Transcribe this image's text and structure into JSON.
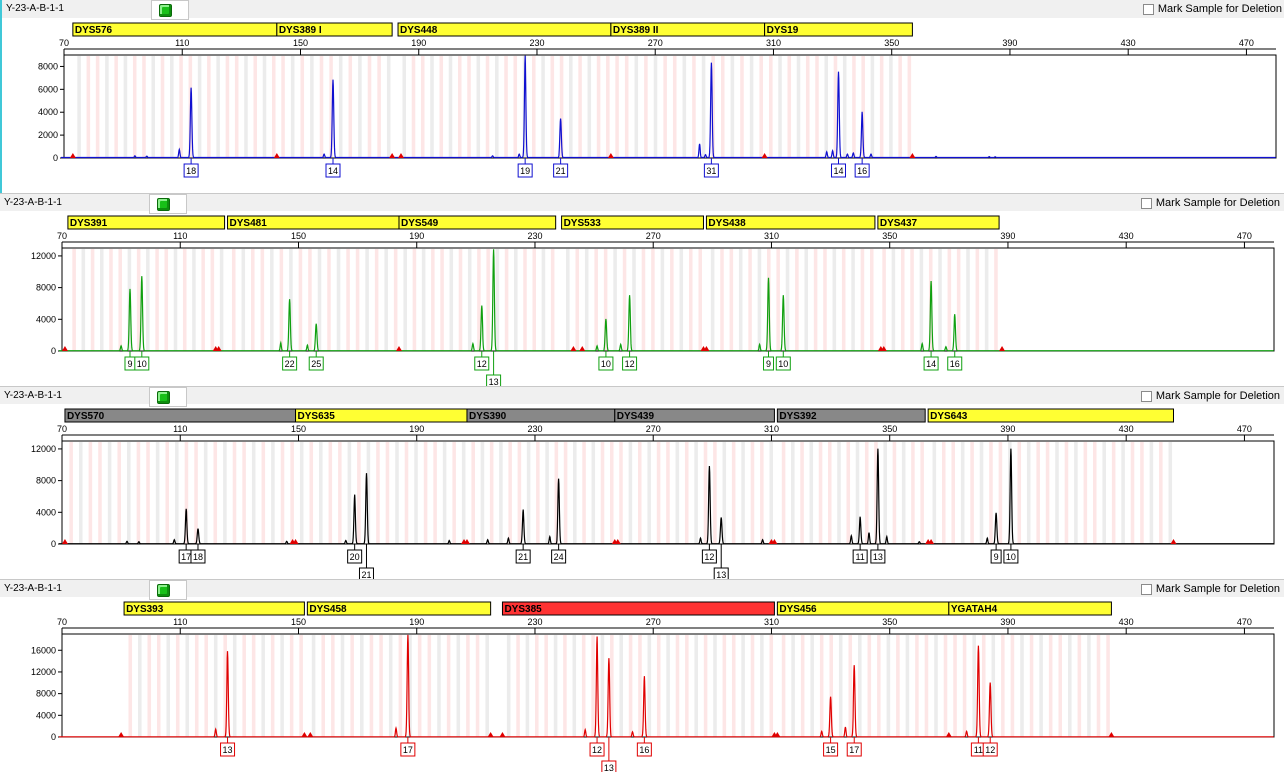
{
  "sample_name": "Y-23-A-B-1-1",
  "mark_label": "Mark Sample for Deletion",
  "x_ticks": [
    70,
    110,
    150,
    190,
    230,
    270,
    310,
    350,
    390,
    430,
    470
  ],
  "colors": {
    "bin_pink": "#fde6e6",
    "bin_gray": "#ececec",
    "marker_yellow": "#ffff33",
    "marker_gray": "#888888",
    "marker_red": "#ff3333",
    "primer_red": "#e00000"
  },
  "chart_data": [
    {
      "type": "line",
      "dye": "blue",
      "color": "#1010d0",
      "ylim": [
        0,
        9000
      ],
      "yticks": [
        0,
        2000,
        4000,
        6000,
        8000
      ],
      "xlim": [
        70,
        480
      ],
      "markers": [
        {
          "name": "DYS576",
          "start": 73,
          "end": 142,
          "color": "yellow"
        },
        {
          "name": "DYS389 I",
          "start": 142,
          "end": 181,
          "color": "yellow"
        },
        {
          "name": "DYS448",
          "start": 183,
          "end": 255,
          "color": "yellow"
        },
        {
          "name": "DYS389 II",
          "start": 255,
          "end": 307,
          "color": "yellow"
        },
        {
          "name": "DYS19",
          "start": 307,
          "end": 357,
          "color": "yellow"
        }
      ],
      "peaks": [
        {
          "x": 113,
          "h": 6100,
          "label": "18"
        },
        {
          "x": 161,
          "h": 6800,
          "label": "14"
        },
        {
          "x": 226,
          "h": 8900,
          "label": "19"
        },
        {
          "x": 238,
          "h": 3400,
          "label": "21"
        },
        {
          "x": 289,
          "h": 8300,
          "label": "31"
        },
        {
          "x": 332,
          "h": 7500,
          "label": "14"
        },
        {
          "x": 340,
          "h": 4000,
          "label": "16"
        }
      ],
      "small_peaks": [
        [
          94,
          150
        ],
        [
          98,
          120
        ],
        [
          109,
          700
        ],
        [
          158,
          300
        ],
        [
          215,
          150
        ],
        [
          224,
          300
        ],
        [
          285,
          1200
        ],
        [
          287,
          250
        ],
        [
          328,
          500
        ],
        [
          330,
          600
        ],
        [
          335,
          300
        ],
        [
          337,
          400
        ],
        [
          343,
          300
        ],
        [
          365,
          100
        ],
        [
          383,
          80
        ],
        [
          385,
          60
        ]
      ],
      "primers": [
        73,
        142,
        181,
        184,
        255,
        307,
        357
      ]
    },
    {
      "type": "line",
      "dye": "green",
      "color": "#10a010",
      "ylim": [
        0,
        13000
      ],
      "yticks": [
        0,
        4000,
        8000,
        12000
      ],
      "xlim": [
        70,
        480
      ],
      "markers": [
        {
          "name": "DYS391",
          "start": 72,
          "end": 125,
          "color": "yellow"
        },
        {
          "name": "DYS481",
          "start": 126,
          "end": 184,
          "color": "yellow"
        },
        {
          "name": "DYS549",
          "start": 184,
          "end": 237,
          "color": "yellow"
        },
        {
          "name": "DYS533",
          "start": 239,
          "end": 287,
          "color": "yellow"
        },
        {
          "name": "DYS438",
          "start": 288,
          "end": 345,
          "color": "yellow"
        },
        {
          "name": "DYS437",
          "start": 346,
          "end": 387,
          "color": "yellow"
        }
      ],
      "peaks": [
        {
          "x": 93,
          "h": 7800,
          "label": "9"
        },
        {
          "x": 97,
          "h": 9400,
          "label": "10"
        },
        {
          "x": 147,
          "h": 6500,
          "label": "22"
        },
        {
          "x": 156,
          "h": 3400,
          "label": "25"
        },
        {
          "x": 212,
          "h": 5700,
          "label": "12"
        },
        {
          "x": 216,
          "h": 12800,
          "label": "13",
          "low": true
        },
        {
          "x": 254,
          "h": 4000,
          "label": "10"
        },
        {
          "x": 262,
          "h": 7000,
          "label": "12"
        },
        {
          "x": 309,
          "h": 9200,
          "label": "9"
        },
        {
          "x": 314,
          "h": 7000,
          "label": "10"
        },
        {
          "x": 364,
          "h": 8800,
          "label": "14"
        },
        {
          "x": 372,
          "h": 4600,
          "label": "16"
        }
      ],
      "small_peaks": [
        [
          90,
          600
        ],
        [
          144,
          1000
        ],
        [
          153,
          700
        ],
        [
          209,
          900
        ],
        [
          251,
          600
        ],
        [
          259,
          800
        ],
        [
          306,
          800
        ],
        [
          361,
          900
        ],
        [
          369,
          500
        ]
      ],
      "primers": [
        71,
        122,
        123,
        184,
        243,
        246,
        287,
        288,
        347,
        348,
        388
      ]
    },
    {
      "type": "line",
      "dye": "black",
      "color": "#000000",
      "ylim": [
        0,
        13000
      ],
      "yticks": [
        0,
        4000,
        8000,
        12000
      ],
      "xlim": [
        70,
        480
      ],
      "markers": [
        {
          "name": "DYS570",
          "start": 71,
          "end": 149,
          "color": "gray"
        },
        {
          "name": "DYS635",
          "start": 149,
          "end": 207,
          "color": "yellow"
        },
        {
          "name": "DYS390",
          "start": 207,
          "end": 257,
          "color": "gray"
        },
        {
          "name": "DYS439",
          "start": 257,
          "end": 311,
          "color": "gray"
        },
        {
          "name": "DYS392",
          "start": 312,
          "end": 362,
          "color": "gray"
        },
        {
          "name": "DYS643",
          "start": 363,
          "end": 446,
          "color": "yellow"
        }
      ],
      "peaks": [
        {
          "x": 112,
          "h": 4400,
          "label": "17"
        },
        {
          "x": 116,
          "h": 1900,
          "label": "18"
        },
        {
          "x": 169,
          "h": 6200,
          "label": "20"
        },
        {
          "x": 173,
          "h": 8900,
          "label": "21",
          "low": true
        },
        {
          "x": 226,
          "h": 4300,
          "label": "21"
        },
        {
          "x": 238,
          "h": 8200,
          "label": "24"
        },
        {
          "x": 289,
          "h": 9800,
          "label": "12"
        },
        {
          "x": 293,
          "h": 3300,
          "label": "13",
          "low": true
        },
        {
          "x": 340,
          "h": 3400,
          "label": "11"
        },
        {
          "x": 346,
          "h": 12000,
          "label": "13"
        },
        {
          "x": 386,
          "h": 3900,
          "label": "9"
        },
        {
          "x": 391,
          "h": 12000,
          "label": "10"
        }
      ],
      "small_peaks": [
        [
          92,
          300
        ],
        [
          96,
          250
        ],
        [
          108,
          500
        ],
        [
          146,
          300
        ],
        [
          166,
          400
        ],
        [
          201,
          400
        ],
        [
          214,
          500
        ],
        [
          221,
          700
        ],
        [
          235,
          900
        ],
        [
          286,
          700
        ],
        [
          307,
          500
        ],
        [
          337,
          1000
        ],
        [
          343,
          1400
        ],
        [
          349,
          900
        ],
        [
          383,
          700
        ],
        [
          360,
          250
        ]
      ],
      "primers": [
        71,
        148,
        149,
        206,
        207,
        257,
        258,
        310,
        311,
        363,
        364,
        446
      ]
    },
    {
      "type": "line",
      "dye": "red",
      "color": "#e00000",
      "ylim": [
        0,
        19000
      ],
      "yticks": [
        0,
        4000,
        8000,
        12000,
        16000
      ],
      "xlim": [
        70,
        480
      ],
      "markers": [
        {
          "name": "DYS393",
          "start": 91,
          "end": 152,
          "color": "yellow"
        },
        {
          "name": "DYS458",
          "start": 153,
          "end": 215,
          "color": "yellow"
        },
        {
          "name": "DYS385",
          "start": 219,
          "end": 311,
          "color": "red"
        },
        {
          "name": "DYS456",
          "start": 312,
          "end": 370,
          "color": "yellow"
        },
        {
          "name": "YGATAH4",
          "start": 370,
          "end": 425,
          "color": "yellow"
        }
      ],
      "peaks": [
        {
          "x": 126,
          "h": 15800,
          "label": "13"
        },
        {
          "x": 187,
          "h": 18800,
          "label": "17"
        },
        {
          "x": 251,
          "h": 18500,
          "label": "12"
        },
        {
          "x": 255,
          "h": 14500,
          "label": "13",
          "low": true
        },
        {
          "x": 267,
          "h": 11200,
          "label": "16"
        },
        {
          "x": 330,
          "h": 7400,
          "label": "15"
        },
        {
          "x": 338,
          "h": 13200,
          "label": "17"
        },
        {
          "x": 380,
          "h": 16800,
          "label": "11"
        },
        {
          "x": 384,
          "h": 10000,
          "label": "12"
        }
      ],
      "small_peaks": [
        [
          122,
          1400
        ],
        [
          183,
          1600
        ],
        [
          247,
          1300
        ],
        [
          263,
          900
        ],
        [
          327,
          1000
        ],
        [
          335,
          1800
        ],
        [
          376,
          1000
        ]
      ],
      "primers": [
        90,
        152,
        154,
        215,
        219,
        311,
        312,
        370,
        425
      ]
    }
  ]
}
